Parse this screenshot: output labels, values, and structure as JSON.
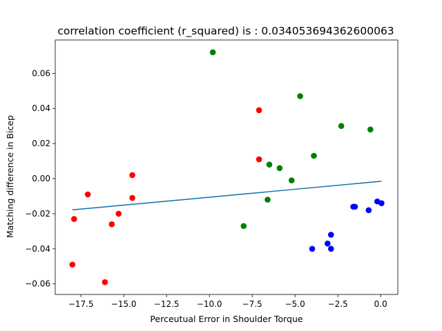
{
  "chart_data": {
    "type": "scatter",
    "title": "correlation coefficient (r_squared) is : 0.034053694362600063",
    "xlabel": "Perceutual Error in Shoulder Torque",
    "ylabel": "Matching difference in Bicep",
    "xlim": [
      -19.0,
      1.0
    ],
    "ylim": [
      -0.066,
      0.079
    ],
    "xticks": [
      -17.5,
      -15.0,
      -12.5,
      -10.0,
      -7.5,
      -5.0,
      -2.5,
      0.0
    ],
    "xtick_labels": [
      "−17.5",
      "−15.0",
      "−12.5",
      "−10.0",
      "−7.5",
      "−5.0",
      "−2.5",
      "0.0"
    ],
    "yticks": [
      -0.06,
      -0.04,
      -0.02,
      0.0,
      0.02,
      0.04,
      0.06
    ],
    "ytick_labels": [
      "−0.06",
      "−0.04",
      "−0.02",
      "0.00",
      "0.02",
      "0.04",
      "0.06"
    ],
    "grid": false,
    "series": [
      {
        "color": "#ff0000",
        "points": [
          [
            -18.0,
            -0.049
          ],
          [
            -17.9,
            -0.023
          ],
          [
            -17.1,
            -0.009
          ],
          [
            -16.1,
            -0.059
          ],
          [
            -15.7,
            -0.026
          ],
          [
            -15.3,
            -0.02
          ],
          [
            -14.5,
            0.002
          ],
          [
            -14.5,
            -0.011
          ],
          [
            -7.1,
            0.039
          ],
          [
            -7.1,
            0.011
          ]
        ]
      },
      {
        "color": "#008000",
        "points": [
          [
            -9.8,
            0.072
          ],
          [
            -8.0,
            -0.027
          ],
          [
            -6.6,
            -0.012
          ],
          [
            -6.5,
            0.008
          ],
          [
            -5.9,
            0.006
          ],
          [
            -5.2,
            -0.001
          ],
          [
            -4.7,
            0.047
          ],
          [
            -3.9,
            0.013
          ],
          [
            -2.3,
            0.03
          ],
          [
            -0.6,
            0.028
          ]
        ]
      },
      {
        "color": "#0000ff",
        "points": [
          [
            -4.0,
            -0.04
          ],
          [
            -3.1,
            -0.037
          ],
          [
            -2.9,
            -0.032
          ],
          [
            -2.9,
            -0.04
          ],
          [
            -1.6,
            -0.016
          ],
          [
            -1.5,
            -0.016
          ],
          [
            -0.7,
            -0.018
          ],
          [
            -0.2,
            -0.013
          ],
          [
            0.05,
            -0.014
          ]
        ]
      }
    ],
    "fit_line": {
      "color": "#1f77b4",
      "x": [
        -18.0,
        0.05
      ],
      "y": [
        -0.0178,
        -0.0015
      ]
    }
  }
}
